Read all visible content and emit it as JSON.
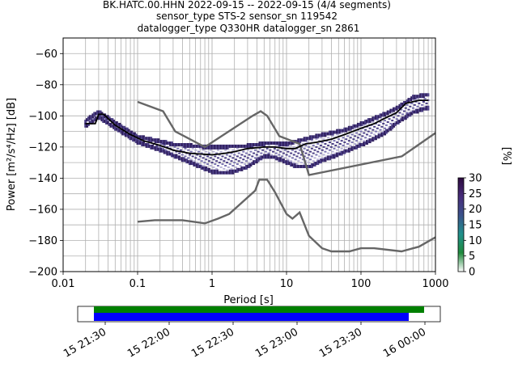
{
  "chart_data": {
    "type": "heatmap",
    "title_lines": [
      "BK.HATC.00.HHN   2022-09-15 -- 2022-09-15  (4/4 segments)",
      "sensor_type STS-2 sensor_sn 119542",
      "datalogger_type Q330HR datalogger_sn 2861"
    ],
    "xlabel": "Period [s]",
    "ylabel": "Power [m²/s⁴/Hz] [dB]",
    "x_scale": "log",
    "xlim": [
      0.01,
      1000
    ],
    "ylim": [
      -200,
      -50
    ],
    "x_ticks": [
      {
        "value": 0.01,
        "label": "0.01"
      },
      {
        "value": 0.1,
        "label": "0.1"
      },
      {
        "value": 1,
        "label": "1"
      },
      {
        "value": 10,
        "label": "10"
      },
      {
        "value": 100,
        "label": "100"
      },
      {
        "value": 1000,
        "label": "1000"
      }
    ],
    "y_ticks": [
      {
        "value": -60,
        "label": "−60"
      },
      {
        "value": -80,
        "label": "−80"
      },
      {
        "value": -100,
        "label": "−100"
      },
      {
        "value": -120,
        "label": "−120"
      },
      {
        "value": -140,
        "label": "−140"
      },
      {
        "value": -160,
        "label": "−160"
      },
      {
        "value": -180,
        "label": "−180"
      },
      {
        "value": -200,
        "label": "−200"
      }
    ],
    "grid": true,
    "noise_model_high": [
      [
        0.1,
        -91
      ],
      [
        0.22,
        -97
      ],
      [
        0.32,
        -110
      ],
      [
        0.8,
        -120
      ],
      [
        3.5,
        -100
      ],
      [
        4.5,
        -97
      ],
      [
        5.5,
        -100
      ],
      [
        8,
        -113
      ],
      [
        15,
        -118
      ],
      [
        20,
        -138
      ],
      [
        354,
        -126
      ],
      [
        1000,
        -111
      ]
    ],
    "noise_model_low": [
      [
        0.1,
        -168
      ],
      [
        0.17,
        -167
      ],
      [
        0.4,
        -167
      ],
      [
        0.8,
        -169
      ],
      [
        1.2,
        -166
      ],
      [
        1.7,
        -163
      ],
      [
        3.8,
        -148
      ],
      [
        4.3,
        -141
      ],
      [
        5.5,
        -141
      ],
      [
        7,
        -149
      ],
      [
        10,
        -163
      ],
      [
        12,
        -166
      ],
      [
        15,
        -162
      ],
      [
        20,
        -177
      ],
      [
        30,
        -185
      ],
      [
        40,
        -187
      ],
      [
        70,
        -187
      ],
      [
        100,
        -185
      ],
      [
        150,
        -185
      ],
      [
        350,
        -187
      ],
      [
        600,
        -184
      ],
      [
        1000,
        -178
      ]
    ],
    "mean_curve": [
      [
        0.02,
        -105
      ],
      [
        0.027,
        -105
      ],
      [
        0.03,
        -99
      ],
      [
        0.035,
        -99
      ],
      [
        0.05,
        -106
      ],
      [
        0.08,
        -112
      ],
      [
        0.12,
        -116
      ],
      [
        0.2,
        -119
      ],
      [
        0.3,
        -122
      ],
      [
        0.5,
        -124
      ],
      [
        1,
        -125
      ],
      [
        1.5,
        -124
      ],
      [
        2,
        -123
      ],
      [
        3,
        -121
      ],
      [
        5,
        -120
      ],
      [
        7,
        -120
      ],
      [
        10,
        -121
      ],
      [
        13,
        -121
      ],
      [
        18,
        -118
      ],
      [
        25,
        -117
      ],
      [
        40,
        -115
      ],
      [
        60,
        -112
      ],
      [
        100,
        -108
      ],
      [
        150,
        -105
      ],
      [
        200,
        -102
      ],
      [
        300,
        -98
      ],
      [
        400,
        -92
      ],
      [
        600,
        -90
      ],
      [
        800,
        -90
      ]
    ],
    "psd_band_upper": [
      [
        0.02,
        -103
      ],
      [
        0.03,
        -97
      ],
      [
        0.05,
        -104
      ],
      [
        0.1,
        -113
      ],
      [
        0.3,
        -118
      ],
      [
        1,
        -120
      ],
      [
        3,
        -119
      ],
      [
        6,
        -117
      ],
      [
        10,
        -118
      ],
      [
        17,
        -115
      ],
      [
        30,
        -112
      ],
      [
        60,
        -109
      ],
      [
        100,
        -105
      ],
      [
        200,
        -99
      ],
      [
        300,
        -95
      ],
      [
        500,
        -88
      ],
      [
        800,
        -86
      ]
    ],
    "psd_band_lower": [
      [
        0.02,
        -107
      ],
      [
        0.03,
        -101
      ],
      [
        0.05,
        -108
      ],
      [
        0.1,
        -117
      ],
      [
        0.2,
        -122
      ],
      [
        0.5,
        -130
      ],
      [
        1,
        -136
      ],
      [
        1.5,
        -137
      ],
      [
        2,
        -136
      ],
      [
        3,
        -133
      ],
      [
        4,
        -129
      ],
      [
        5,
        -126
      ],
      [
        7,
        -127
      ],
      [
        10,
        -130
      ],
      [
        14,
        -133
      ],
      [
        20,
        -133
      ],
      [
        30,
        -129
      ],
      [
        50,
        -125
      ],
      [
        100,
        -119
      ],
      [
        200,
        -112
      ],
      [
        300,
        -105
      ],
      [
        500,
        -98
      ],
      [
        800,
        -95
      ]
    ],
    "colorbar": {
      "label": "[%]",
      "min": 0,
      "max": 30,
      "ticks": [
        "0",
        "5",
        "10",
        "15",
        "20",
        "25",
        "30"
      ],
      "colors": [
        "#ffffff",
        "#1f8a3c",
        "#21918c",
        "#3b528b",
        "#472c7a",
        "#2c0a3f"
      ]
    },
    "timeline": {
      "ticks": [
        "15 21:30",
        "15 22:00",
        "15 22:30",
        "15 23:00",
        "15 23:30",
        "16 00:00"
      ],
      "data_bar_color": "#008000",
      "gap_bar_color": "#0000ff"
    }
  }
}
